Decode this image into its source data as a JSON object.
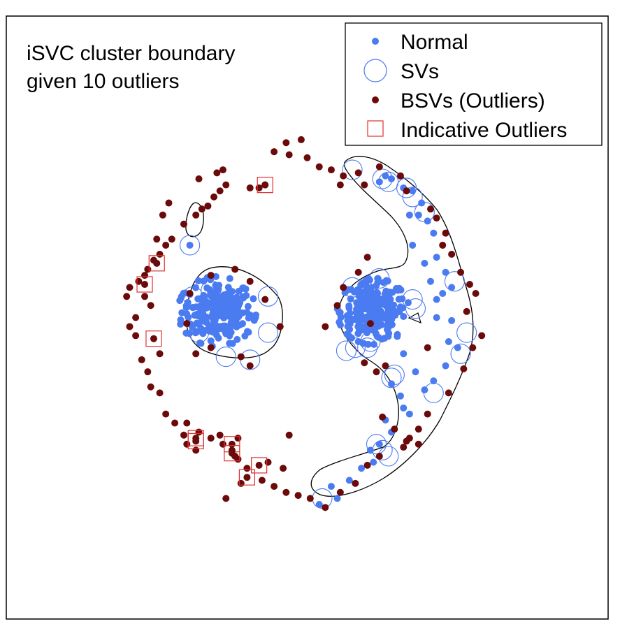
{
  "chart_data": {
    "type": "scatter",
    "title_lines": [
      "iSVC cluster boundary",
      "given 10 outliers"
    ],
    "xlabel": "",
    "ylabel": "",
    "grid": false,
    "legend_position": "top-right",
    "xlim": [
      0,
      100
    ],
    "ylim": [
      0,
      100
    ],
    "colors": {
      "normal": "#4a7bf0",
      "sv_ring": "#4a7bf0",
      "bsv": "#6b0a0a",
      "indicative": "#e03030",
      "boundary": "#000000"
    },
    "legend": [
      {
        "key": "normal",
        "label": "Normal",
        "marker": "dot"
      },
      {
        "key": "sv",
        "label": "SVs",
        "marker": "ring"
      },
      {
        "key": "bsv",
        "label": "BSVs (Outliers)",
        "marker": "dot"
      },
      {
        "key": "indicative",
        "label": "Indicative Outliers",
        "marker": "square"
      }
    ],
    "clusters": [
      {
        "name": "left-blob",
        "center": [
          35,
          51
        ],
        "spread": [
          6.5,
          5.8
        ],
        "count": 230
      },
      {
        "name": "right-blob",
        "center": [
          61,
          51
        ],
        "spread": [
          6,
          5.5
        ],
        "count": 230
      }
    ],
    "normal_points": [
      [
        30.5,
        62
      ],
      [
        62,
        72.5
      ],
      [
        63,
        73.5
      ],
      [
        64,
        73
      ],
      [
        66,
        71.5
      ],
      [
        67.5,
        71
      ],
      [
        69,
        69
      ],
      [
        68.5,
        67
      ],
      [
        70,
        66
      ],
      [
        71,
        64
      ],
      [
        71.5,
        60
      ],
      [
        73,
        57.5
      ],
      [
        74,
        55
      ],
      [
        72.5,
        54
      ],
      [
        71.5,
        53
      ],
      [
        74,
        49.5
      ],
      [
        73.5,
        46
      ],
      [
        75,
        45
      ],
      [
        73,
        42
      ],
      [
        71,
        39.5
      ],
      [
        69.5,
        38
      ],
      [
        67,
        34
      ],
      [
        64,
        31
      ],
      [
        62,
        29
      ],
      [
        60.5,
        28
      ],
      [
        61,
        26
      ],
      [
        59,
        25
      ],
      [
        57,
        23
      ],
      [
        55,
        20
      ],
      [
        54,
        22
      ],
      [
        52,
        19
      ],
      [
        67,
        67
      ],
      [
        67.5,
        62
      ],
      [
        69.5,
        59
      ],
      [
        70.5,
        56
      ],
      [
        71.5,
        50
      ],
      [
        66,
        44
      ],
      [
        68,
        41
      ],
      [
        64,
        39
      ],
      [
        65.5,
        37
      ],
      [
        66,
        35
      ],
      [
        63,
        33
      ]
    ],
    "sv_points": [
      [
        30.5,
        62
      ],
      [
        34,
        54.5
      ],
      [
        31,
        53.5
      ],
      [
        43.5,
        53.5
      ],
      [
        43.5,
        47.5
      ],
      [
        36.5,
        43.5
      ],
      [
        40.5,
        43
      ],
      [
        32,
        47.5
      ],
      [
        62,
        56.5
      ],
      [
        57.5,
        55
      ],
      [
        60.5,
        46
      ],
      [
        56.5,
        44.5
      ],
      [
        58,
        45
      ],
      [
        60,
        45
      ],
      [
        64.5,
        40.5
      ],
      [
        68,
        51.5
      ],
      [
        67.5,
        53
      ],
      [
        57.5,
        74.5
      ],
      [
        62.5,
        73
      ],
      [
        63.5,
        72.5
      ],
      [
        66.5,
        71.5
      ],
      [
        67.5,
        70
      ],
      [
        69.5,
        67.5
      ],
      [
        74.5,
        56
      ],
      [
        76.5,
        47.5
      ],
      [
        75.5,
        44
      ],
      [
        71,
        37.5
      ],
      [
        64,
        40
      ],
      [
        61.5,
        29
      ],
      [
        62.5,
        28
      ],
      [
        63.5,
        27
      ],
      [
        52.5,
        20
      ]
    ],
    "bsv_points": [
      [
        46.5,
        79
      ],
      [
        49,
        79.5
      ],
      [
        47,
        77
      ],
      [
        44.5,
        77.5
      ],
      [
        50,
        76.5
      ],
      [
        54,
        74.5
      ],
      [
        52,
        75
      ],
      [
        56,
        73.5
      ],
      [
        55.5,
        72
      ],
      [
        58.5,
        74
      ],
      [
        59.5,
        72
      ],
      [
        62,
        75
      ],
      [
        65.5,
        73.5
      ],
      [
        66.5,
        71
      ],
      [
        70.5,
        68
      ],
      [
        71.5,
        66.5
      ],
      [
        73,
        64
      ],
      [
        72.5,
        62
      ],
      [
        74,
        60.5
      ],
      [
        75.5,
        57.5
      ],
      [
        77,
        55.5
      ],
      [
        78,
        54
      ],
      [
        76.5,
        51
      ],
      [
        79,
        47
      ],
      [
        77.5,
        45
      ],
      [
        76,
        41.5
      ],
      [
        73.5,
        37.5
      ],
      [
        70,
        34
      ],
      [
        68.5,
        31.5
      ],
      [
        66.5,
        29.5
      ],
      [
        66,
        28.5
      ],
      [
        62,
        27
      ],
      [
        60,
        25.5
      ],
      [
        58,
        22.5
      ],
      [
        55.5,
        21
      ],
      [
        53,
        18.5
      ],
      [
        50.5,
        20
      ],
      [
        48.5,
        20.5
      ],
      [
        46.5,
        21
      ],
      [
        44.5,
        22
      ],
      [
        42.5,
        23
      ],
      [
        40,
        25
      ],
      [
        38.5,
        26.5
      ],
      [
        38,
        27
      ],
      [
        37.5,
        28
      ],
      [
        36,
        29
      ],
      [
        34,
        30
      ],
      [
        32,
        31
      ],
      [
        30,
        32.5
      ],
      [
        28,
        32.5
      ],
      [
        26.5,
        34
      ],
      [
        25.5,
        37.5
      ],
      [
        23.5,
        41
      ],
      [
        22.5,
        43
      ],
      [
        21.5,
        47
      ],
      [
        20.5,
        48.5
      ],
      [
        21.5,
        50
      ],
      [
        20,
        53.5
      ],
      [
        20.5,
        55
      ],
      [
        22,
        56
      ],
      [
        23,
        57
      ],
      [
        24.5,
        59.5
      ],
      [
        25.5,
        60.5
      ],
      [
        26.5,
        62
      ],
      [
        27.5,
        63
      ],
      [
        29.5,
        65.5
      ],
      [
        31.5,
        67
      ],
      [
        32.5,
        68
      ],
      [
        34.5,
        70
      ],
      [
        35.5,
        71
      ],
      [
        36.5,
        72
      ],
      [
        40.5,
        71.5
      ],
      [
        43,
        72
      ],
      [
        35,
        74
      ],
      [
        36,
        74.5
      ],
      [
        32,
        73
      ],
      [
        33.5,
        68.5
      ],
      [
        42,
        71.5
      ],
      [
        23.5,
        58
      ],
      [
        25,
        63
      ],
      [
        26,
        67
      ],
      [
        27,
        69
      ],
      [
        34,
        57
      ],
      [
        38,
        58
      ],
      [
        40.5,
        56
      ],
      [
        43,
        53
      ],
      [
        30.5,
        54
      ],
      [
        30,
        49
      ],
      [
        31.5,
        44
      ],
      [
        34,
        45
      ],
      [
        39,
        43.5
      ],
      [
        40.5,
        42
      ],
      [
        45.5,
        48.5
      ],
      [
        53,
        48.5
      ],
      [
        55,
        52
      ],
      [
        56,
        55
      ],
      [
        59.5,
        42.5
      ],
      [
        61.5,
        41
      ],
      [
        62.5,
        33.5
      ],
      [
        64.5,
        31.5
      ],
      [
        67,
        30
      ],
      [
        68.5,
        29
      ],
      [
        47,
        30.5
      ],
      [
        43.5,
        26
      ],
      [
        46,
        25
      ],
      [
        38.5,
        30
      ],
      [
        35.5,
        30.5
      ],
      [
        31.5,
        28
      ],
      [
        30,
        29
      ],
      [
        36.5,
        20
      ],
      [
        39,
        22.5
      ],
      [
        29.5,
        30.5
      ],
      [
        24,
        38.5
      ],
      [
        25.5,
        44
      ],
      [
        24,
        52
      ],
      [
        23,
        53.5
      ],
      [
        70,
        45
      ],
      [
        63,
        42
      ],
      [
        60.5,
        49
      ],
      [
        58.5,
        57.5
      ],
      [
        60,
        60
      ]
    ],
    "indicative_outliers": [
      [
        25,
        59
      ],
      [
        23,
        55.5
      ],
      [
        24.5,
        46.5
      ],
      [
        31.5,
        30
      ],
      [
        37.5,
        29
      ],
      [
        42,
        25.5
      ],
      [
        40,
        23.5
      ],
      [
        43,
        72
      ],
      [
        31.5,
        29.5
      ],
      [
        37.5,
        27.5
      ]
    ]
  }
}
